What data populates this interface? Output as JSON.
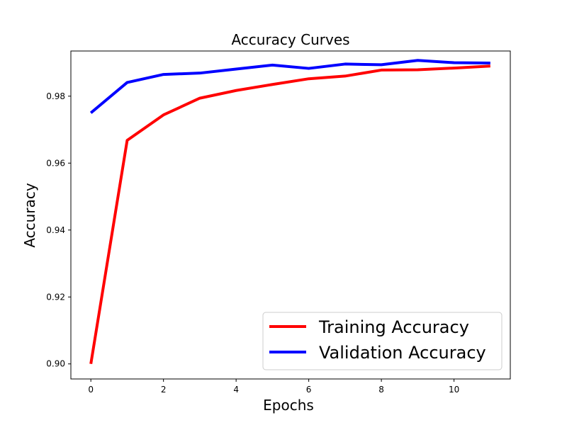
{
  "chart_data": {
    "type": "line",
    "title": "Accuracy Curves",
    "xlabel": "Epochs",
    "ylabel": "Accuracy",
    "x": [
      0,
      1,
      2,
      3,
      4,
      5,
      6,
      7,
      8,
      9,
      10,
      11
    ],
    "xlim": [
      -0.55,
      11.55
    ],
    "ylim": [
      0.8955,
      0.9935
    ],
    "xticks": [
      0,
      2,
      4,
      6,
      8,
      10
    ],
    "xtick_labels": [
      "0",
      "2",
      "4",
      "6",
      "8",
      "10"
    ],
    "yticks": [
      0.9,
      0.92,
      0.94,
      0.96,
      0.98
    ],
    "ytick_labels": [
      "0.90",
      "0.92",
      "0.94",
      "0.96",
      "0.98"
    ],
    "grid": false,
    "legend_position": "bottom-right",
    "series": [
      {
        "name": "Training Accuracy",
        "color": "#ff0000",
        "values": [
          0.9,
          0.9668,
          0.9744,
          0.9794,
          0.9817,
          0.9835,
          0.9852,
          0.986,
          0.9878,
          0.9879,
          0.9884,
          0.989
        ]
      },
      {
        "name": "Validation Accuracy",
        "color": "#0000ff",
        "values": [
          0.975,
          0.9841,
          0.9865,
          0.9869,
          0.9881,
          0.9893,
          0.9883,
          0.9896,
          0.9894,
          0.9907,
          0.99,
          0.9899
        ]
      }
    ]
  }
}
